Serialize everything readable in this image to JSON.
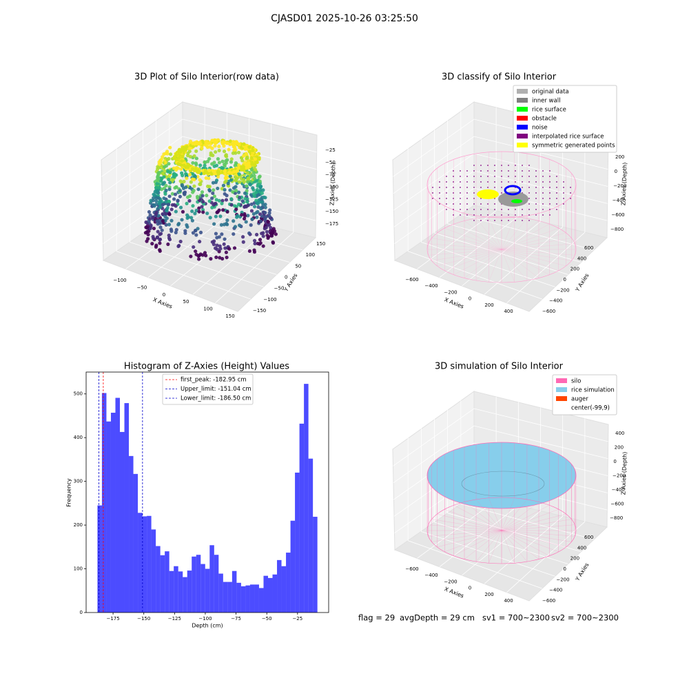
{
  "title": "CJASD01 2025-10-26 03:25:50",
  "panels": [
    {
      "title": "3D Plot of Silo Interior(row data)",
      "xlabel": "X Axies",
      "ylabel": "Y Axies",
      "zlabel": "Z Axies (Depth)",
      "xticks": [
        {
          "value": -100,
          "label": "−100"
        },
        {
          "value": -50,
          "label": "−50"
        },
        0,
        50,
        100,
        150
      ],
      "yticks": [
        150,
        100,
        50,
        0,
        {
          "value": -50,
          "label": "−50"
        },
        {
          "value": -100,
          "label": "−100"
        },
        {
          "value": -150,
          "label": "−150"
        }
      ],
      "zticks": [
        {
          "value": -25,
          "label": "−25"
        },
        {
          "value": -50,
          "label": "−50"
        },
        {
          "value": -75,
          "label": "−75"
        },
        {
          "value": -100,
          "label": "−100"
        },
        {
          "value": -125,
          "label": "−125"
        },
        {
          "value": -150,
          "label": "−150"
        },
        {
          "value": -175,
          "label": "−175"
        }
      ]
    },
    {
      "title": "3D classify of Silo Interior",
      "xlabel": "X Axies",
      "ylabel": "Y Axies",
      "zlabel": "Z Axies (Depth)",
      "xticks": [
        {
          "value": -600,
          "label": "−600"
        },
        {
          "value": -400,
          "label": "−400"
        },
        {
          "value": -200,
          "label": "−200"
        },
        0,
        200,
        400
      ],
      "yticks": [
        600,
        400,
        200,
        0,
        {
          "value": -200,
          "label": "−200"
        },
        {
          "value": -400,
          "label": "−400"
        },
        {
          "value": -600,
          "label": "−600"
        }
      ],
      "zticks": [
        200,
        0,
        {
          "value": -200,
          "label": "−200"
        },
        {
          "value": -400,
          "label": "−400"
        },
        {
          "value": -600,
          "label": "−600"
        },
        {
          "value": -800,
          "label": "−800"
        }
      ],
      "legend": [
        {
          "name": "original data",
          "color": "#b0b0b0"
        },
        {
          "name": "inner wall",
          "color": "#808080"
        },
        {
          "name": "rice surface",
          "color": "#00ff00"
        },
        {
          "name": "obstacle",
          "color": "#ff0000"
        },
        {
          "name": "noise",
          "color": "#0000ff"
        },
        {
          "name": "interpolated rice surface",
          "color": "#800080"
        },
        {
          "name": "symmetric generated points",
          "color": "#ffff00"
        }
      ]
    },
    {
      "title": "3D simulation of Silo Interior",
      "xlabel": "X Axies",
      "ylabel": "Y Axies",
      "zlabel": "Z Axies (Depth)",
      "xticks": [
        {
          "value": -600,
          "label": "−600"
        },
        {
          "value": -400,
          "label": "−400"
        },
        {
          "value": -200,
          "label": "−200"
        },
        0,
        200,
        400
      ],
      "yticks": [
        600,
        400,
        200,
        0,
        {
          "value": -200,
          "label": "−200"
        },
        {
          "value": -400,
          "label": "−400"
        },
        {
          "value": -600,
          "label": "−600"
        }
      ],
      "zticks": [
        400,
        200,
        0,
        {
          "value": -200,
          "label": "−200"
        },
        {
          "value": -400,
          "label": "−400"
        },
        {
          "value": -600,
          "label": "−600"
        },
        {
          "value": -800,
          "label": "−800"
        }
      ],
      "legend": [
        {
          "name": "silo",
          "color": "#ff69b4"
        },
        {
          "name": "rice simulation",
          "color": "#87ceeb"
        },
        {
          "name": "auger",
          "color": "#ff4500"
        },
        {
          "name": "center(-99,9)",
          "color": "#ffffff"
        }
      ]
    }
  ],
  "chart_data": {
    "type": "histogram",
    "title": "Histogram of Z-Axies (Height) Values",
    "xlabel": "Depth (cm)",
    "ylabel": "Frequency",
    "color": "#0000ff",
    "bins": [
      -187.7,
      -184.05,
      -180.4,
      -176.75,
      -173.1,
      -169.45,
      -165.8,
      -162.15,
      -158.5,
      -154.85,
      -151.2,
      -147.55,
      -143.9,
      -140.25,
      -136.6,
      -132.95,
      -129.3,
      -125.65,
      -122.0,
      -118.35,
      -114.7,
      -111.05,
      -107.4,
      -103.75,
      -100.1,
      -96.45,
      -92.8,
      -89.15,
      -85.5,
      -81.85,
      -78.2,
      -74.55,
      -70.9,
      -67.25,
      -63.6,
      -59.95,
      -56.3,
      -52.65,
      -49.0,
      -45.35,
      -41.7,
      -38.05,
      -34.4,
      -30.75,
      -27.1,
      -23.45,
      -19.8,
      -16.15,
      -12.5,
      -8.85
    ],
    "values": [
      245,
      502,
      437,
      457,
      491,
      413,
      479,
      358,
      317,
      228,
      220,
      221,
      190,
      152,
      131,
      140,
      95,
      106,
      94,
      81,
      96,
      128,
      132,
      111,
      100,
      154,
      132,
      89,
      70,
      70,
      95,
      68,
      60,
      62,
      64,
      64,
      56,
      84,
      79,
      87,
      120,
      106,
      137,
      210,
      320,
      432,
      523,
      352,
      219
    ],
    "xlim": [
      -196.9,
      0.3
    ],
    "ylim": [
      0,
      550
    ],
    "xticks": [
      {
        "value": -175,
        "label": "−175"
      },
      {
        "value": -150,
        "label": "−150"
      },
      {
        "value": -125,
        "label": "−125"
      },
      {
        "value": -100,
        "label": "−100"
      },
      {
        "value": -75,
        "label": "−75"
      },
      {
        "value": -50,
        "label": "−50"
      },
      {
        "value": -25,
        "label": "−25"
      }
    ],
    "yticks": [
      0,
      100,
      200,
      300,
      400,
      500
    ],
    "lines": [
      {
        "name": "first_peak: -182.95 cm",
        "value": -182.95,
        "color": "#ff0000"
      },
      {
        "name": "Upper_limit: -151.04 cm",
        "value": -151.04,
        "color": "#0000cc"
      },
      {
        "name": "Lower_limit: -186.50 cm",
        "value": -186.5,
        "color": "#0000cc"
      }
    ]
  },
  "status": [
    "flag = 29",
    "avgDepth = 29 cm",
    "sv1 = 700~2300",
    "sv2 = 700~2300"
  ]
}
